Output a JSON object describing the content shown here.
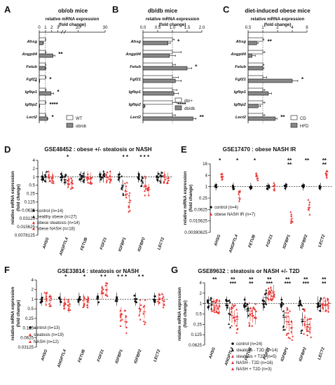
{
  "figure": {
    "panel_letters": [
      "A",
      "B",
      "C",
      "D",
      "E",
      "F",
      "G"
    ]
  },
  "chart_data": [
    {
      "panel": "A",
      "type": "bar",
      "orientation": "horizontal",
      "title": "ob/ob mice",
      "xlabel": "relative mRNA expression (fold change)",
      "x_ticks": [
        "0",
        "1",
        "2",
        "3",
        "20",
        "30"
      ],
      "xlim": [
        0,
        30
      ],
      "axis_break": [
        3.6,
        15
      ],
      "categories": [
        "Ahsg",
        "Angptl4",
        "Fetub",
        "Fgf21",
        "Igfbp1",
        "Igfbp2",
        "Lect2"
      ],
      "series": [
        {
          "name": "WT",
          "color": "#ffffff",
          "values": [
            1,
            1,
            1,
            1,
            1,
            1,
            1
          ],
          "err": [
            0.05,
            0.08,
            0.06,
            0.1,
            0.1,
            0.08,
            0.06
          ]
        },
        {
          "name": "ob/ob",
          "color": "#888888",
          "values": [
            0.6,
            2.2,
            1.0,
            3.8,
            1.9,
            0.05,
            1.3
          ],
          "err": [
            0.08,
            0.3,
            0.1,
            0.8,
            0.4,
            0.02,
            0.1
          ]
        }
      ],
      "significance": [
        "",
        "**",
        "",
        "*",
        "*",
        "****",
        "*"
      ]
    },
    {
      "panel": "B",
      "type": "bar",
      "orientation": "horizontal",
      "title": "db/db mice",
      "xlabel": "relative mRNA expression (fold change)",
      "x_ticks": [
        "0.0",
        "0.5",
        "1.0",
        "1.5",
        "2.0"
      ],
      "xlim": [
        0,
        2
      ],
      "categories": [
        "Ahsg",
        "Angptl4",
        "Fetub",
        "Fgf21",
        "Igfbp1",
        "Igfbp2",
        "Lect2"
      ],
      "series": [
        {
          "name": "db/+",
          "color": "#ffffff",
          "values": [
            1,
            1,
            1,
            1,
            1,
            1,
            1
          ],
          "err": [
            0.06,
            0.3,
            0.1,
            0.2,
            0.15,
            0.15,
            0.1
          ]
        },
        {
          "name": "db/db",
          "color": "#888888",
          "values": [
            0.85,
            0.9,
            1.5,
            1.1,
            1.05,
            0.05,
            1.7
          ],
          "err": [
            0.08,
            0.2,
            0.15,
            0.2,
            0.15,
            0.02,
            0.1
          ]
        }
      ],
      "significance": [
        "*",
        "",
        "*",
        "",
        "",
        "****",
        "**"
      ]
    },
    {
      "panel": "C",
      "type": "bar",
      "orientation": "horizontal",
      "title": "diet-induced obese mice",
      "xlabel": "relative mRNA expression (fold change)",
      "x_ticks": [
        "0.5",
        "1",
        "2",
        "4",
        "8"
      ],
      "xscale": "log2",
      "xlim": [
        0.5,
        8
      ],
      "categories": [
        "Ahsg",
        "Angptl4",
        "Fetub",
        "Fgf21",
        "Igfbp1",
        "Igfbp2",
        "Lect2"
      ],
      "series": [
        {
          "name": "CD",
          "color": "#ffffff",
          "values": [
            1,
            1,
            1,
            1,
            1,
            1,
            1
          ],
          "err": [
            0.05,
            0.1,
            0.05,
            0.2,
            0.1,
            0.1,
            0.1
          ]
        },
        {
          "name": "HFD",
          "color": "#888888",
          "values": [
            0.75,
            0.6,
            1.0,
            4.0,
            1.3,
            0.8,
            1.8
          ],
          "err": [
            0.05,
            0.1,
            0.05,
            1.2,
            0.2,
            0.1,
            0.15
          ]
        }
      ],
      "significance": [
        "**",
        "",
        "",
        "*",
        "",
        "",
        "**"
      ]
    },
    {
      "panel": "D",
      "type": "scatter",
      "title": "GSE48452 : obese +/- steatosis or NASH",
      "ylabel": "relative mRNA expression (fold change)",
      "yscale": "log2",
      "y_ticks": [
        "4",
        "2",
        "1",
        "0.5",
        "0.25",
        "0.125",
        "0.0625",
        "0.03125",
        "0.015625",
        "0.0078125"
      ],
      "categories": [
        "AHSG",
        "ANGPTL4",
        "FETUB",
        "FGF21",
        "IGFBP1",
        "IGFBP2",
        "LECT2"
      ],
      "groups": [
        {
          "name": "control (n=14)",
          "marker": "circle",
          "color": "#111111",
          "medians": [
            1,
            1,
            1,
            1,
            1,
            1,
            1
          ]
        },
        {
          "name": "healthy obese (n=27)",
          "marker": "triangle",
          "color": "#111111",
          "medians": [
            1,
            0.8,
            1,
            1,
            0.5,
            0.7,
            1
          ]
        },
        {
          "name": "obese steatosis (n=14)",
          "marker": "triangle",
          "color": "#e8312f",
          "medians": [
            1,
            0.7,
            1,
            1,
            0.3,
            0.5,
            1
          ]
        },
        {
          "name": "obese NASH (n=18)",
          "marker": "triangle",
          "color": "#e8312f",
          "medians": [
            0.9,
            0.6,
            0.9,
            1,
            0.12,
            0.35,
            0.9
          ]
        }
      ],
      "significance": [
        "",
        "*",
        "",
        "",
        "* *",
        "* * *",
        ""
      ]
    },
    {
      "panel": "E",
      "type": "scatter",
      "title": "GSE17470 : obese NASH IR",
      "ylabel": "relative mRNA expression (fold change)",
      "yscale": "log2",
      "y_ticks": [
        "16",
        "4",
        "1",
        "0.25",
        "0.0625",
        "0.015625",
        "0.00390625"
      ],
      "categories": [
        "AHSG",
        "ANGPTL4",
        "FETUB",
        "FGF21",
        "IGFBP1",
        "IGFBP2",
        "LECT2"
      ],
      "groups": [
        {
          "name": "control (n=4)",
          "marker": "circle",
          "color": "#111111",
          "medians": [
            1,
            1,
            1,
            1,
            1,
            1,
            1
          ]
        },
        {
          "name": "obese NASH IR (n=7)",
          "marker": "triangle",
          "color": "#e8312f",
          "medians": [
            3.5,
            0.25,
            3.5,
            1,
            0.02,
            0.08,
            4.5
          ]
        }
      ],
      "significance": [
        "*",
        "*",
        "*",
        "",
        "****",
        "**",
        "****"
      ]
    },
    {
      "panel": "F",
      "type": "scatter",
      "title": "GSE33814 : steatosis or NASH",
      "ylabel": "relative mRNA expression (fold change)",
      "yscale": "log2",
      "y_ticks": [
        "4",
        "2",
        "1",
        "0.5",
        "0.25",
        "0.125",
        "0.0625",
        "0.03125"
      ],
      "categories": [
        "AHSG",
        "ANGPTL4",
        "FETUB",
        "FGF21",
        "IGFBP1",
        "IGFBP2",
        "LECT2"
      ],
      "groups": [
        {
          "name": "control (n=13)",
          "marker": "circle",
          "color": "#111111",
          "medians": [
            1,
            1,
            1,
            1,
            1,
            1,
            1
          ]
        },
        {
          "name": "steatosis (n=19)",
          "marker": "triangle",
          "color": "#e8312f",
          "medians": [
            1,
            0.75,
            0.9,
            1.6,
            0.35,
            0.5,
            1
          ]
        },
        {
          "name": "NASH (n=12)",
          "marker": "triangle",
          "color": "#e8312f",
          "medians": [
            0.9,
            0.6,
            0.8,
            2,
            0.2,
            0.4,
            0.9
          ]
        }
      ],
      "significance": [
        "",
        "*",
        "*",
        "* *",
        "* * *",
        "* *",
        ""
      ]
    },
    {
      "panel": "G",
      "type": "scatter",
      "title": "GSE89632 : steatosis or NASH +/- T2D",
      "ylabel": "relative mRNA expression (fold change)",
      "yscale": "log2",
      "y_ticks": [
        "4",
        "2",
        "1",
        "0.5",
        "0.25",
        "0.125",
        "0.0625"
      ],
      "categories": [
        "AHSG",
        "ANGPTL4",
        "FETUB",
        "FGF21",
        "IGFBP1",
        "IGFBP2",
        "LECT2"
      ],
      "groups": [
        {
          "name": "control (n=24)",
          "marker": "circle",
          "color": "#111111",
          "medians": [
            1,
            1,
            1,
            1,
            1,
            1,
            1
          ]
        },
        {
          "name": "steatosis - T2D (n=14)",
          "marker": "triangle",
          "color": "#111111",
          "medians": [
            0.9,
            0.5,
            0.6,
            1.5,
            0.4,
            0.35,
            0.9
          ]
        },
        {
          "name": "steatosis + T2D (n=5)",
          "marker": "triangle",
          "color": "#e8312f",
          "medians": [
            0.9,
            0.45,
            0.5,
            1.8,
            0.3,
            0.3,
            0.9
          ]
        },
        {
          "name": "NASH - T2D (n=16)",
          "marker": "triangle",
          "color": "#e8312f",
          "medians": [
            0.85,
            0.4,
            0.45,
            2,
            0.25,
            0.25,
            0.9
          ]
        },
        {
          "name": "NASH + T2D (n=3)",
          "marker": "triangle",
          "color": "#e8312f",
          "medians": [
            0.8,
            0.35,
            0.4,
            2.2,
            0.2,
            0.2,
            0.85
          ]
        }
      ],
      "significance": [
        "**",
        "*****",
        "****",
        "*****",
        "*****",
        "*****",
        "****"
      ]
    }
  ]
}
